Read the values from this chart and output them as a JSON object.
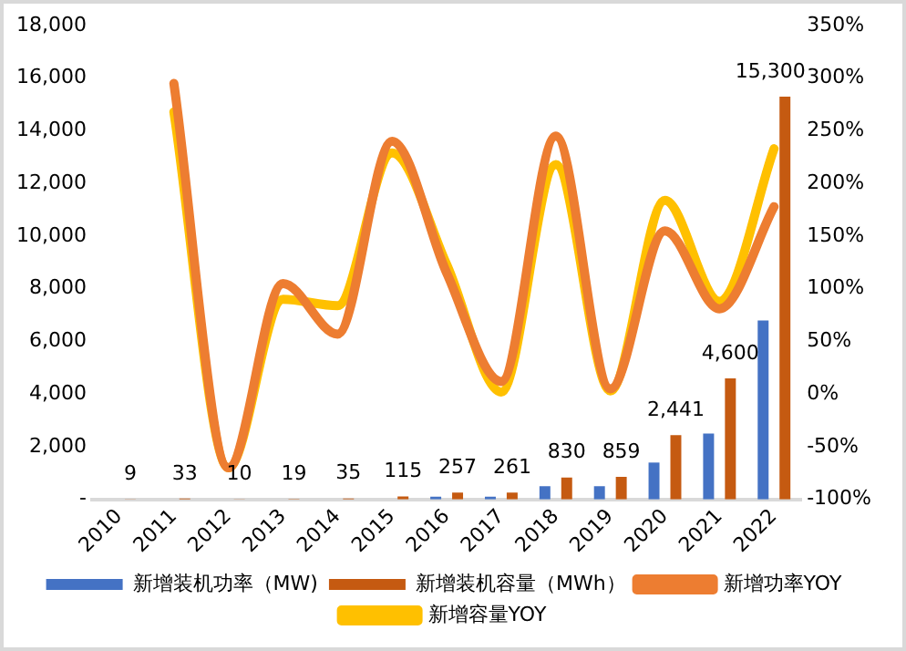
{
  "chart_data": {
    "type": "bar",
    "categories": [
      "2010",
      "2011",
      "2012",
      "2013",
      "2014",
      "2015",
      "2016",
      "2017",
      "2018",
      "2019",
      "2020",
      "2021",
      "2022"
    ],
    "series": [
      {
        "name": "新增装机功率（MW)",
        "color": "#4472c4",
        "values": [
          0,
          0,
          0,
          0,
          0,
          0,
          100,
          100,
          500,
          500,
          1400,
          2500,
          6800
        ]
      },
      {
        "name": "新增装机容量（MWh）",
        "color": "#c55a11",
        "values": [
          9,
          33,
          10,
          19,
          35,
          115,
          257,
          261,
          830,
          859,
          2441,
          4600,
          15300
        ],
        "value_labels": [
          "9",
          "33",
          "10",
          "19",
          "35",
          "115",
          "257",
          "261",
          "830",
          "859",
          "2,441",
          "4,600",
          "15,300"
        ]
      },
      {
        "name": "新增功率YOY",
        "type": "line",
        "axis": "y2",
        "color": "#ed7d31",
        "values": [
          null,
          295,
          -70,
          105,
          57,
          240,
          115,
          12,
          245,
          5,
          155,
          81,
          178
        ]
      },
      {
        "name": "新增容量YOY",
        "type": "line",
        "axis": "y2",
        "color": "#ffc000",
        "values": [
          null,
          268,
          -70,
          90,
          84,
          229,
          123,
          2,
          218,
          3,
          184,
          88,
          233
        ]
      }
    ],
    "ylim": [
      0,
      18000
    ],
    "yticks": [
      {
        "value": 0,
        "label": "-"
      },
      {
        "value": 2000,
        "label": "2,000"
      },
      {
        "value": 4000,
        "label": "4,000"
      },
      {
        "value": 6000,
        "label": "6,000"
      },
      {
        "value": 8000,
        "label": "8,000"
      },
      {
        "value": 10000,
        "label": "10,000"
      },
      {
        "value": 12000,
        "label": "12,000"
      },
      {
        "value": 14000,
        "label": "14,000"
      },
      {
        "value": 16000,
        "label": "16,000"
      },
      {
        "value": 18000,
        "label": "18,000"
      }
    ],
    "y2lim": [
      -100,
      350
    ],
    "y2ticks": [
      {
        "value": -100,
        "label": "-100%"
      },
      {
        "value": -50,
        "label": "-50%"
      },
      {
        "value": 0,
        "label": "0%"
      },
      {
        "value": 50,
        "label": "50%"
      },
      {
        "value": 100,
        "label": "100%"
      },
      {
        "value": 150,
        "label": "150%"
      },
      {
        "value": 200,
        "label": "200%"
      },
      {
        "value": 250,
        "label": "250%"
      },
      {
        "value": 300,
        "label": "300%"
      },
      {
        "value": 350,
        "label": "350%"
      }
    ],
    "grid": false,
    "legend": "bottom",
    "marker": "none"
  }
}
